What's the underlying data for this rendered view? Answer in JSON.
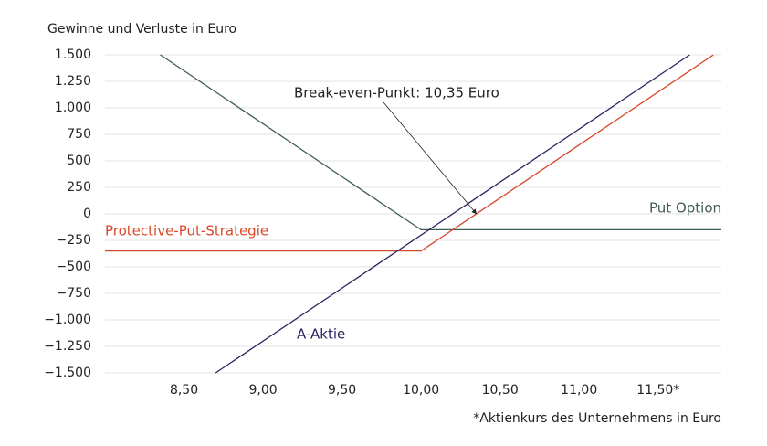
{
  "chart_data": {
    "type": "line",
    "y_label": "Gewinne und Verluste in Euro",
    "x_label": "*Aktienkurs des Unternehmens in Euro",
    "xlim": [
      8.0,
      11.9
    ],
    "ylim": [
      -1500,
      1500
    ],
    "xticks": [
      {
        "value": 8.5,
        "label": "8,50"
      },
      {
        "value": 9.0,
        "label": "9,00"
      },
      {
        "value": 9.5,
        "label": "9,50"
      },
      {
        "value": 10.0,
        "label": "10,00"
      },
      {
        "value": 10.5,
        "label": "10,50"
      },
      {
        "value": 11.0,
        "label": "11,00"
      },
      {
        "value": 11.5,
        "label": "11,50*"
      }
    ],
    "yticks": [
      {
        "value": 1500,
        "label": "1.500"
      },
      {
        "value": 1250,
        "label": "1.250"
      },
      {
        "value": 1000,
        "label": "1.000"
      },
      750,
      500,
      250,
      0,
      {
        "value": -250,
        "label": "−250"
      },
      {
        "value": -500,
        "label": "−500"
      },
      {
        "value": -750,
        "label": "−750"
      },
      {
        "value": -1000,
        "label": "−1.000"
      },
      {
        "value": -1250,
        "label": "−1.250"
      },
      {
        "value": -1500,
        "label": "−1.500"
      }
    ],
    "grid": true,
    "series": [
      {
        "name": "Put Option",
        "color": "#3f5c55",
        "x": [
          8.35,
          10.0,
          11.9
        ],
        "values": [
          1500,
          -150,
          -150
        ]
      },
      {
        "name": "Protective-Put-Strategie",
        "color": "#d9472b",
        "x": [
          8.0,
          10.0,
          11.85
        ],
        "values": [
          -350,
          -350,
          1500
        ]
      },
      {
        "name": "A-Aktie",
        "color": "#2a2462",
        "x": [
          8.7,
          11.7
        ],
        "values": [
          -1500,
          1500
        ]
      }
    ],
    "annotation": {
      "text": "Break-even-Punkt: 10,35 Euro",
      "x": 10.35,
      "y": 0
    }
  }
}
